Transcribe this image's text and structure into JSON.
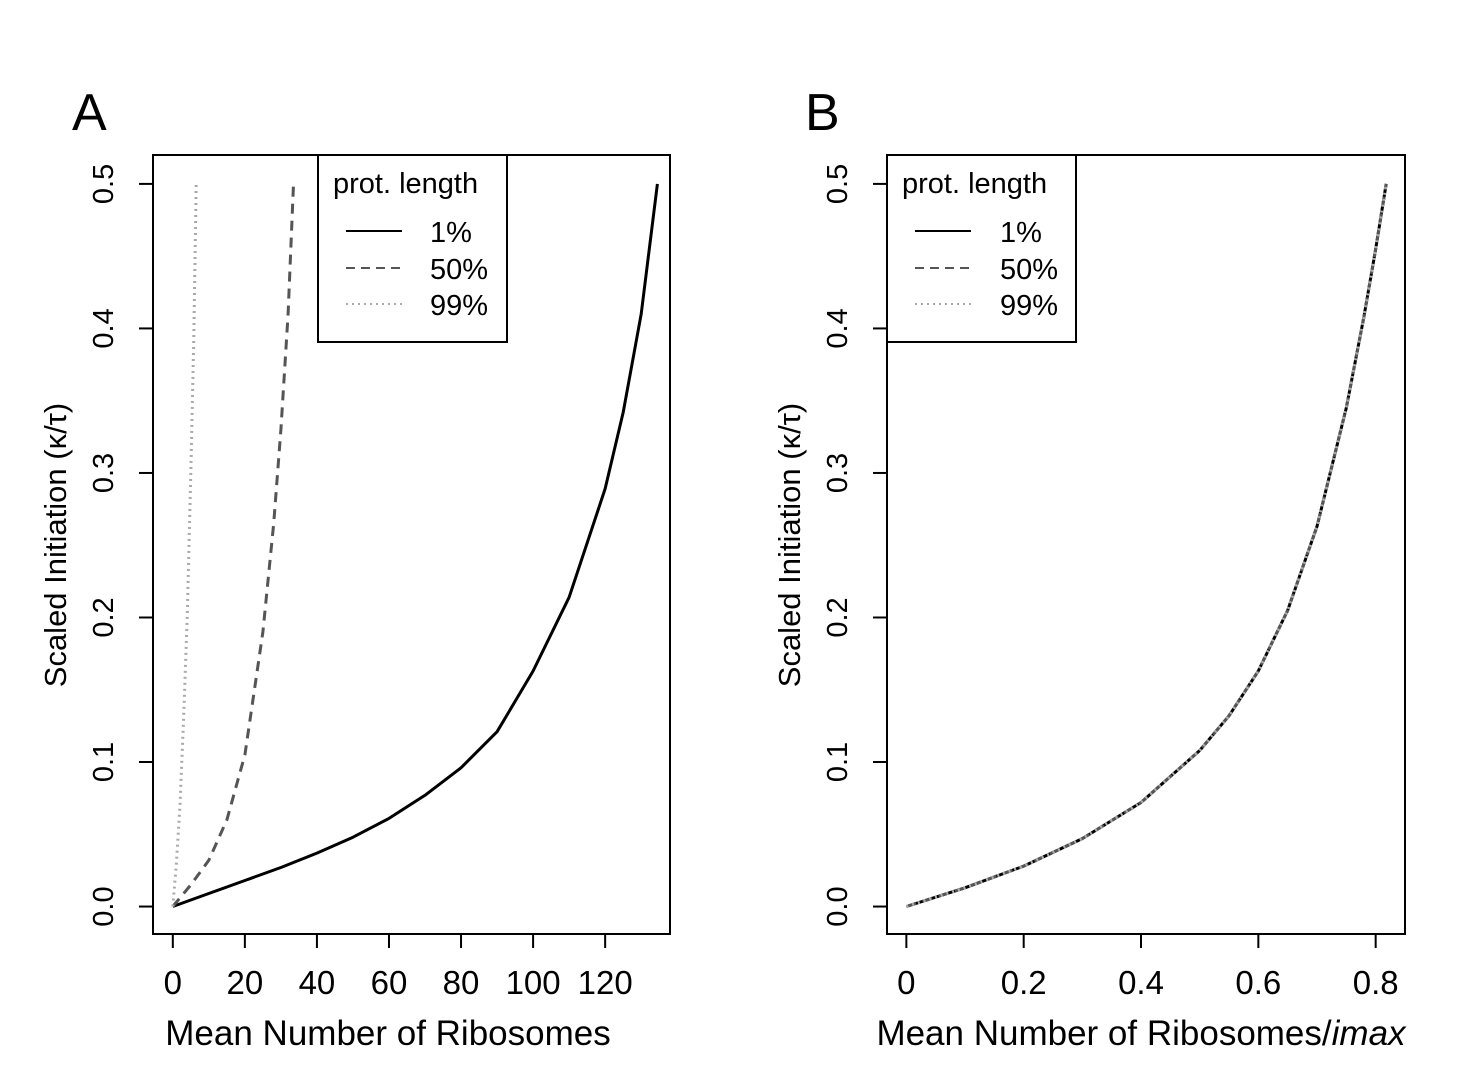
{
  "chart_data": [
    {
      "panel_label": "A",
      "type": "line",
      "xlabel": "Mean Number of Ribosomes",
      "xlabel_italic_suffix": "",
      "ylabel": "Scaled Initiation (κ/τ)",
      "xlim": [
        -5.5,
        138
      ],
      "ylim": [
        -0.019,
        0.52
      ],
      "xticks": [
        0,
        20,
        40,
        60,
        80,
        100,
        120
      ],
      "xtick_labels": [
        "0",
        "20",
        "40",
        "60",
        "80",
        "100",
        "120"
      ],
      "yticks": [
        0.0,
        0.1,
        0.2,
        0.3,
        0.4,
        0.5
      ],
      "ytick_labels": [
        "0.0",
        "0.1",
        "0.2",
        "0.3",
        "0.4",
        "0.5"
      ],
      "legend": {
        "title": "prot. length",
        "position": "top-right",
        "entries": [
          "1%",
          "50%",
          "99%"
        ]
      },
      "series": [
        {
          "name": "1%",
          "style": "solid",
          "color": "#000000",
          "x": [
            0,
            10,
            20,
            30,
            40,
            50,
            60,
            70,
            80,
            90,
            100,
            110,
            120,
            125,
            130,
            134.5
          ],
          "y": [
            0,
            0.009,
            0.018,
            0.027,
            0.037,
            0.048,
            0.061,
            0.077,
            0.096,
            0.121,
            0.163,
            0.214,
            0.289,
            0.342,
            0.41,
            0.5
          ]
        },
        {
          "name": "50%",
          "style": "dashed",
          "color": "#555555",
          "x": [
            0,
            5,
            10,
            15,
            20,
            25,
            28,
            30,
            32,
            33.5
          ],
          "y": [
            0,
            0.015,
            0.032,
            0.06,
            0.105,
            0.19,
            0.265,
            0.33,
            0.41,
            0.5
          ]
        },
        {
          "name": "99%",
          "style": "dotted",
          "color": "#aaaaaa",
          "x": [
            0,
            1,
            2,
            3,
            4,
            5,
            5.8,
            6.5
          ],
          "y": [
            0,
            0.03,
            0.07,
            0.13,
            0.2,
            0.3,
            0.39,
            0.5
          ]
        }
      ]
    },
    {
      "panel_label": "B",
      "type": "line",
      "xlabel": "Mean Number of Ribosomes/",
      "xlabel_italic_suffix": "imax",
      "ylabel": "Scaled Initiation (κ/τ)",
      "xlim": [
        -0.033,
        0.85
      ],
      "ylim": [
        -0.019,
        0.52
      ],
      "xticks": [
        0,
        0.2,
        0.4,
        0.6,
        0.8
      ],
      "xtick_labels": [
        "0",
        "0.2",
        "0.4",
        "0.6",
        "0.8"
      ],
      "yticks": [
        0.0,
        0.1,
        0.2,
        0.3,
        0.4,
        0.5
      ],
      "ytick_labels": [
        "0.0",
        "0.1",
        "0.2",
        "0.3",
        "0.4",
        "0.5"
      ],
      "legend": {
        "title": "prot. length",
        "position": "top-left",
        "entries": [
          "1%",
          "50%",
          "99%"
        ]
      },
      "series": [
        {
          "name": "1%",
          "style": "solid",
          "color": "#000000",
          "x": [
            0,
            0.1,
            0.2,
            0.3,
            0.4,
            0.5,
            0.55,
            0.6,
            0.65,
            0.7,
            0.75,
            0.78,
            0.8,
            0.818
          ],
          "y": [
            0,
            0.013,
            0.028,
            0.047,
            0.072,
            0.108,
            0.132,
            0.163,
            0.205,
            0.263,
            0.345,
            0.408,
            0.455,
            0.5
          ]
        },
        {
          "name": "50%",
          "style": "dashed",
          "color": "#555555",
          "x": [
            0,
            0.1,
            0.2,
            0.3,
            0.4,
            0.5,
            0.55,
            0.6,
            0.65,
            0.7,
            0.75,
            0.78,
            0.8,
            0.818
          ],
          "y": [
            0,
            0.013,
            0.028,
            0.047,
            0.072,
            0.108,
            0.132,
            0.163,
            0.205,
            0.263,
            0.345,
            0.408,
            0.455,
            0.5
          ]
        },
        {
          "name": "99%",
          "style": "dotted",
          "color": "#aaaaaa",
          "x": [
            0,
            0.1,
            0.2,
            0.3,
            0.4,
            0.5,
            0.55,
            0.6,
            0.65,
            0.7,
            0.75,
            0.78,
            0.8,
            0.818
          ],
          "y": [
            0,
            0.013,
            0.028,
            0.047,
            0.072,
            0.108,
            0.132,
            0.163,
            0.205,
            0.263,
            0.345,
            0.408,
            0.455,
            0.5
          ]
        }
      ]
    }
  ]
}
